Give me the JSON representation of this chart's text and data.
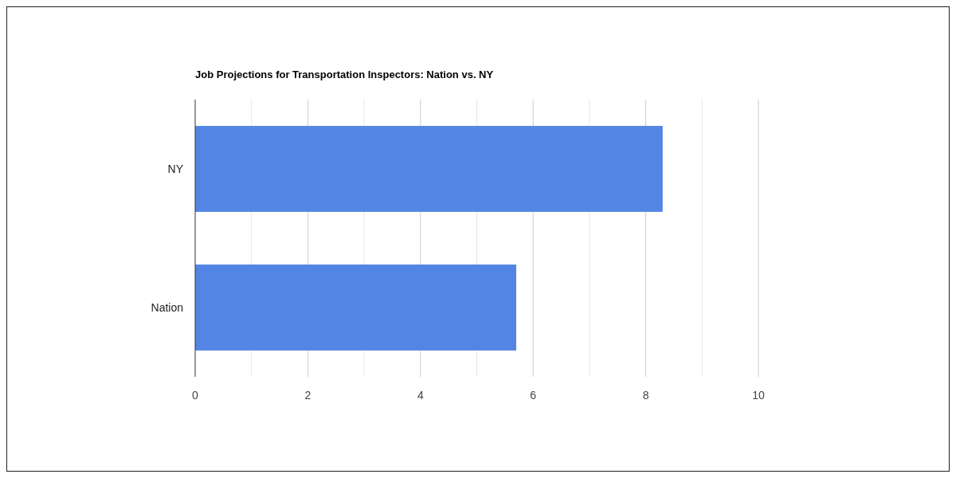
{
  "chart_data": {
    "type": "bar",
    "orientation": "horizontal",
    "title": "Job Projections for Transportation Inspectors: Nation vs. NY",
    "categories": [
      "NY",
      "Nation"
    ],
    "values": [
      8.3,
      5.7
    ],
    "color": "#5386e4",
    "xlim": [
      0,
      10
    ],
    "xticks": [
      0,
      {
        "value": 1,
        "label": null
      },
      2,
      {
        "value": 3,
        "label": null
      },
      4,
      {
        "value": 5,
        "label": null
      },
      6,
      {
        "value": 7,
        "label": null
      },
      8,
      {
        "value": 9,
        "label": null
      },
      10
    ],
    "grid": "x"
  }
}
